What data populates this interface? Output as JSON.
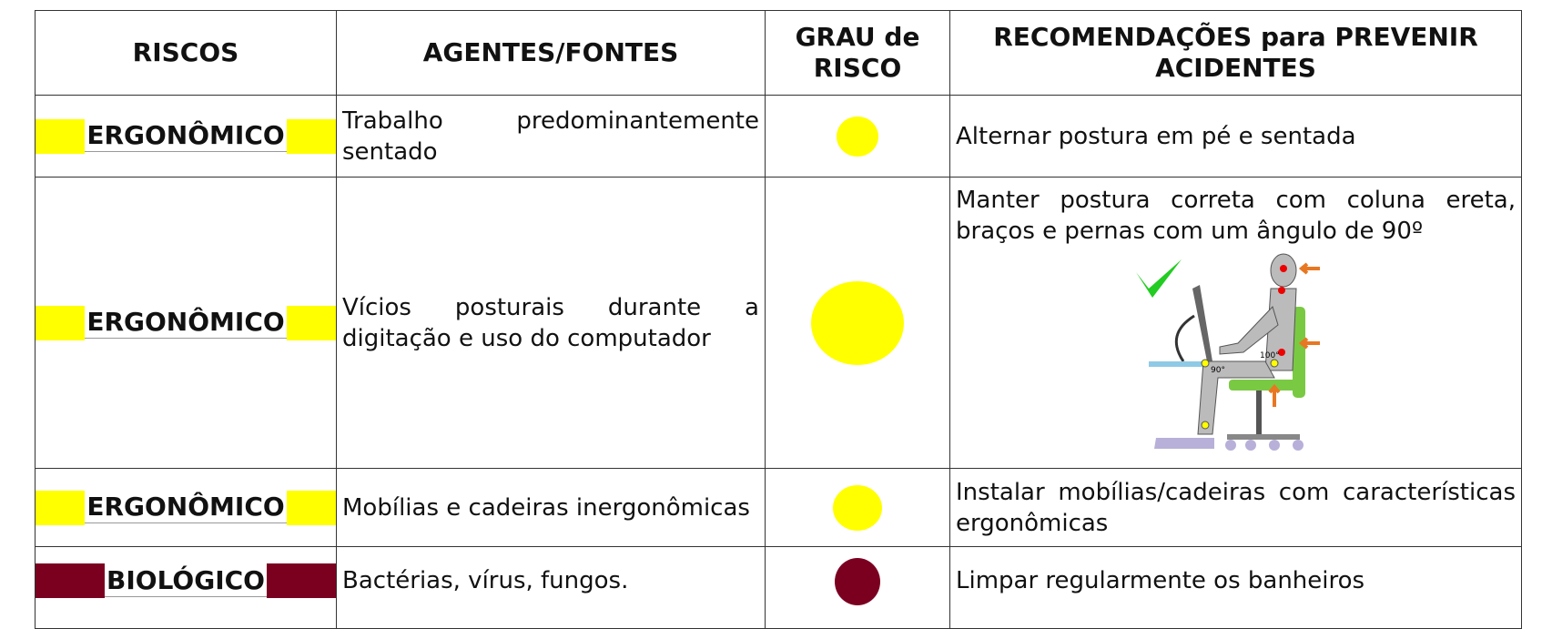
{
  "table": {
    "header": [
      "RISCOS",
      "AGENTES/FONTES",
      "GRAU de RISCO",
      "RECOMENDAÇÕES para PREVENIR ACIDENTES"
    ],
    "rows": [
      {
        "risco": "ERGONÔMICO",
        "agente": "Trabalho predominantemente sentado",
        "recomendacao": "Alternar postura em pé e sentada"
      },
      {
        "risco": "ERGONÔMICO",
        "agente": "Vícios posturais durante a digitação e uso do computador",
        "recomendacao": "Manter postura correta com coluna ereta, braços e pernas com um ângulo de 90º",
        "figure_labels": [
          "100°",
          "90°"
        ]
      },
      {
        "risco": "ERGONÔMICO",
        "agente": "Mobílias e cadeiras inergonômicas",
        "recomendacao": "Instalar mobílias/cadeiras com características ergonômicas"
      },
      {
        "risco": "BIOLÓGICO",
        "agente": "Bactérias, vírus, fungos.",
        "recomendacao": "Limpar regularmente os banheiros"
      }
    ]
  }
}
